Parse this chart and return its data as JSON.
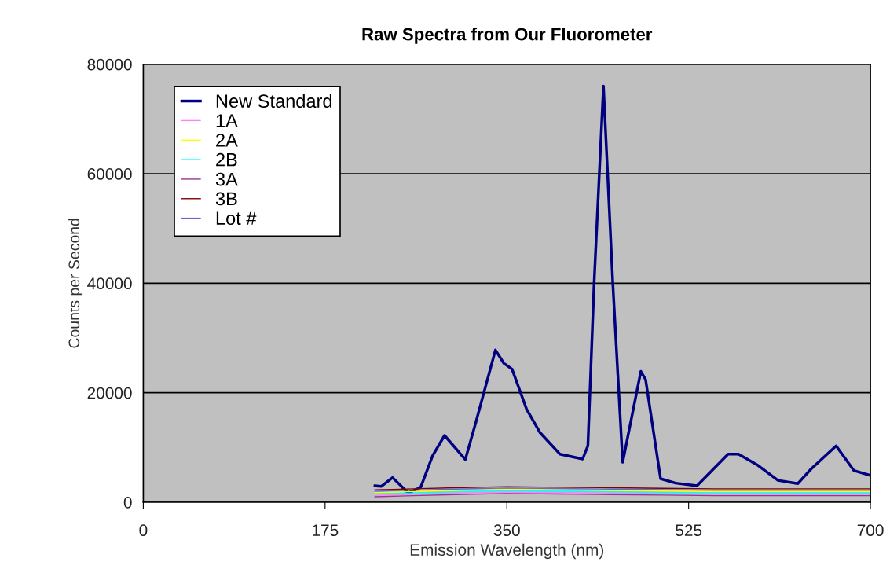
{
  "chart_data": {
    "type": "line",
    "title": "Raw Spectra from Our Fluorometer",
    "xlabel": "Emission Wavelength (nm)",
    "ylabel": "Counts per Second",
    "xlim": [
      0,
      700
    ],
    "xticks": [
      0,
      175,
      350,
      525,
      700
    ],
    "ylim": [
      0,
      80000
    ],
    "yticks": [
      0,
      20000,
      40000,
      60000,
      80000
    ],
    "grid": "y",
    "legend": "top left",
    "marker": "none",
    "line_style": "solid",
    "series": [
      {
        "name": "New Standard",
        "color": "#000080",
        "x": [
          223,
          229,
          240,
          255,
          267,
          278.5,
          290,
          310,
          320,
          339,
          347,
          355,
          369,
          382,
          401,
          423,
          428,
          434,
          443,
          452,
          461.5,
          479,
          483.6,
          498,
          512.5,
          533,
          563,
          573,
          592,
          611,
          630,
          643,
          667,
          684,
          700
        ],
        "values": [
          3000,
          2900,
          4500,
          1700,
          2700,
          8500,
          12200,
          7800,
          14500,
          27800,
          25400,
          24300,
          17000,
          12700,
          8800,
          7900,
          10300,
          40000,
          76000,
          40000,
          7300,
          23900,
          22400,
          4300,
          3500,
          3000,
          8800,
          8800,
          6700,
          4000,
          3400,
          6100,
          10300,
          5800,
          4900
        ]
      },
      {
        "name": "1A",
        "color": "#ff80ff",
        "x": [
          223,
          260,
          300,
          350,
          400,
          450,
          500,
          550,
          600,
          650,
          700
        ],
        "values": [
          1250,
          1450,
          1650,
          1850,
          1750,
          1650,
          1550,
          1450,
          1450,
          1450,
          1450
        ]
      },
      {
        "name": "2A",
        "color": "#ffff00",
        "x": [
          223,
          260,
          300,
          350,
          400,
          450,
          500,
          550,
          600,
          650,
          700
        ],
        "values": [
          1750,
          1950,
          2150,
          2350,
          2250,
          2150,
          2050,
          1950,
          1950,
          1950,
          1950
        ]
      },
      {
        "name": "2B",
        "color": "#00ffff",
        "x": [
          223,
          260,
          300,
          350,
          400,
          450,
          500,
          550,
          600,
          650,
          700
        ],
        "values": [
          1500,
          1700,
          1900,
          2100,
          2000,
          1900,
          1800,
          1700,
          1700,
          1700,
          1700
        ]
      },
      {
        "name": "3A",
        "color": "#993399",
        "x": [
          223,
          260,
          300,
          350,
          400,
          450,
          500,
          550,
          600,
          650,
          700
        ],
        "values": [
          1000,
          1200,
          1400,
          1600,
          1500,
          1400,
          1300,
          1200,
          1200,
          1200,
          1200
        ]
      },
      {
        "name": "3B",
        "color": "#800000",
        "x": [
          223,
          260,
          300,
          350,
          400,
          450,
          500,
          550,
          600,
          650,
          700
        ],
        "values": [
          2250,
          2450,
          2650,
          2850,
          2750,
          2650,
          2550,
          2450,
          2450,
          2450,
          2450
        ]
      },
      {
        "name": "Lot #",
        "color": "#6666cc",
        "x": [
          223,
          260,
          300,
          350,
          400,
          450,
          500,
          550,
          600,
          650,
          700
        ],
        "values": [
          2000,
          2200,
          2400,
          2600,
          2500,
          2400,
          2300,
          2200,
          2200,
          2200,
          2200
        ]
      }
    ]
  }
}
